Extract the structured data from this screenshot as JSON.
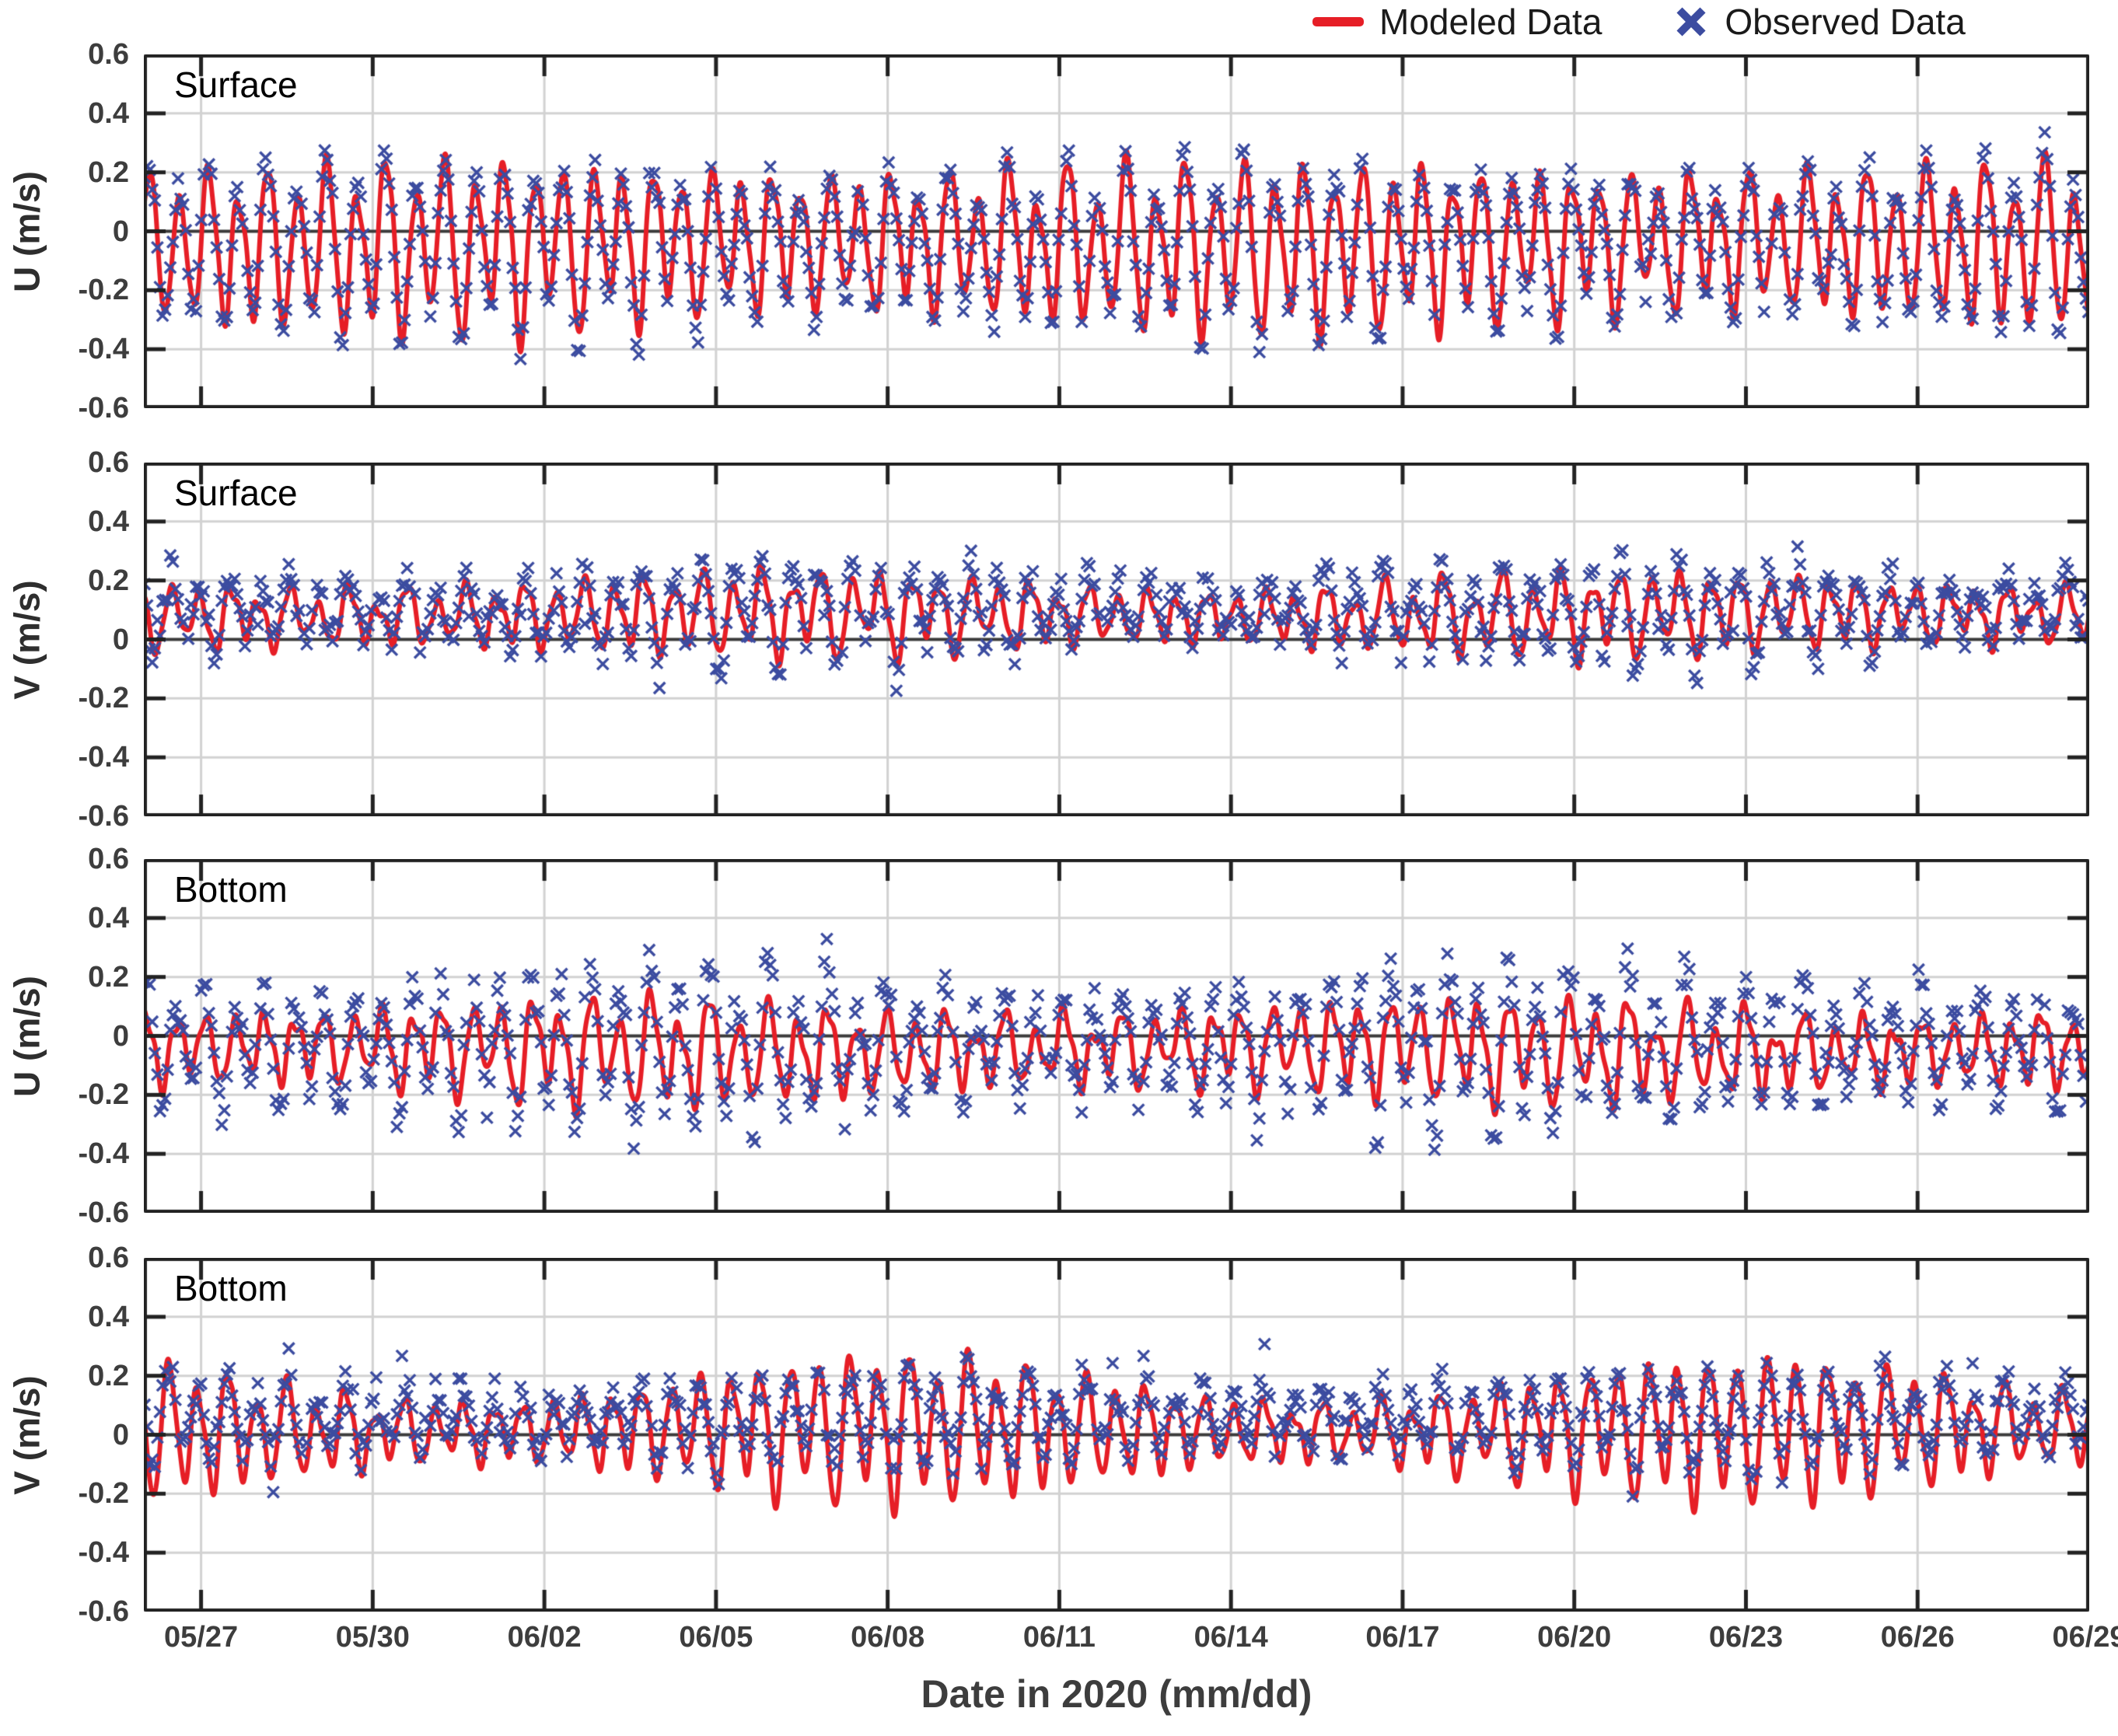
{
  "legend": {
    "modeled_label": "Modeled Data",
    "observed_label": "Observed Data"
  },
  "colors": {
    "modeled_red": "#e61e26",
    "observed_blue": "#3c4ca0",
    "grid": "#d2d2d2",
    "axis": "#222222",
    "zero_line": "#3b3b3b",
    "tick_text": "#3d3d3d",
    "label_text": "#1a1a1a"
  },
  "xaxis": {
    "label": "Date in 2020 (mm/dd)",
    "tick_labels": [
      "05/27",
      "05/30",
      "06/02",
      "06/05",
      "06/08",
      "06/11",
      "06/14",
      "06/17",
      "06/20",
      "06/23",
      "06/26",
      "06/29"
    ],
    "tick_days": [
      1,
      4,
      7,
      10,
      13,
      16,
      19,
      22,
      25,
      28,
      31,
      34
    ],
    "span_days": 34,
    "start_date": "05/26",
    "end_date": "06/29"
  },
  "yaxis": {
    "tick_labels": [
      "0.6",
      "0.4",
      "0.2",
      "0",
      "-0.2",
      "-0.4",
      "-0.6"
    ],
    "tick_values": [
      0.6,
      0.4,
      0.2,
      0,
      -0.2,
      -0.4,
      -0.6
    ],
    "limits": [
      -0.6,
      0.6
    ]
  },
  "chart_data": {
    "type": "line+scatter",
    "description": "Four stacked time-series panels comparing modeled (red line) and observed (blue x markers) tidal current velocity components U and V (m/s) at Surface and Bottom, 2020-05-26 through 2020-06-29. Signals are semidiurnal tidal oscillations with diurnal inequality and spring-neap modulation.",
    "x_unit": "days since 2020-05-26 00:00 (axis shown as mm/dd)",
    "tidal_period_days": 0.5175,
    "diurnal_period_days": 1.0027,
    "springneap_period_days": 14.77,
    "panels": [
      {
        "label": "Surface",
        "ylabel": "U (m/s)",
        "ylim": [
          -0.6,
          0.6
        ],
        "modeled": {
          "mean": -0.04,
          "amp": 0.22,
          "mod": 0.12,
          "spring": 5,
          "phase": 0.3,
          "diurnal": 0.3,
          "skew": 0.1,
          "noise": 0.025,
          "seed": 11,
          "approx_min": -0.42,
          "approx_max": 0.4
        },
        "observed": {
          "mean": -0.045,
          "amp": 0.235,
          "mod": 0.12,
          "spring": 5,
          "phase": 0.42,
          "diurnal": 0.3,
          "skew": 0.08,
          "noise": 0.012,
          "jitter": 0.026,
          "dt": 0.045,
          "gap_p": 0.05,
          "outlier_p": 0.025,
          "outlier_bias": 0.4,
          "outlier_mag": 0.09,
          "seed": 21,
          "approx_min": -0.35,
          "approx_max": 0.41
        }
      },
      {
        "label": "Surface",
        "ylabel": "V (m/s)",
        "ylim": [
          -0.6,
          0.6
        ],
        "modeled": {
          "mean": 0.085,
          "amp": 0.095,
          "mod": 0.25,
          "spring": 11,
          "phase": 2.1,
          "diurnal": 0.35,
          "skew": 0.1,
          "noise": 0.02,
          "seed": 12,
          "approx_min": -0.15,
          "approx_max": 0.27
        },
        "observed": {
          "mean": 0.1,
          "amp": 0.12,
          "mod": 0.28,
          "spring": 11,
          "phase": 2.2,
          "diurnal": 0.35,
          "skew": 0.08,
          "noise": 0.012,
          "jitter": 0.03,
          "dt": 0.045,
          "gap_p": 0.05,
          "outlier_p": 0.025,
          "outlier_bias": 0.72,
          "outlier_mag": 0.12,
          "seed": 22,
          "approx_min": -0.2,
          "approx_max": 0.37
        }
      },
      {
        "label": "Bottom",
        "ylabel": "U (m/s)",
        "ylim": [
          -0.6,
          0.6
        ],
        "modeled": {
          "mean": -0.045,
          "amp": 0.12,
          "mod": 0.22,
          "spring": 9,
          "phase": 0.9,
          "diurnal": 0.35,
          "skew": 0.12,
          "noise": 0.025,
          "seed": 13,
          "approx_min": -0.27,
          "approx_max": 0.28
        },
        "observed": {
          "mean": -0.03,
          "amp": 0.2,
          "mod": 0.22,
          "spring": 9,
          "phase": 1.0,
          "diurnal": 0.32,
          "skew": 0.1,
          "noise": 0.012,
          "jitter": 0.03,
          "dt": 0.045,
          "gap_p": 0.05,
          "outlier_p": 0.03,
          "outlier_bias": 0.45,
          "outlier_mag": 0.1,
          "seed": 23,
          "approx_min": -0.37,
          "approx_max": 0.41
        }
      },
      {
        "label": "Bottom",
        "ylabel": "V (m/s)",
        "ylim": [
          -0.6,
          0.6
        ],
        "modeled": {
          "mean": 0.02,
          "amp": 0.15,
          "mod": 0.45,
          "spring": 13.1,
          "phase": 2.6,
          "diurnal": 0.25,
          "skew": 0.1,
          "noise": 0.02,
          "seed": 14,
          "approx_min": -0.31,
          "approx_max": 0.27
        },
        "observed": {
          "mean": 0.06,
          "amp": 0.115,
          "mod": 0.28,
          "spring": 13.1,
          "phase": 2.7,
          "diurnal": 0.3,
          "skew": 0.08,
          "noise": 0.012,
          "jitter": 0.03,
          "dt": 0.045,
          "gap_p": 0.05,
          "outlier_p": 0.025,
          "outlier_bias": 0.35,
          "outlier_mag": 0.1,
          "seed": 24,
          "approx_min": -0.25,
          "approx_max": 0.34
        }
      }
    ]
  }
}
